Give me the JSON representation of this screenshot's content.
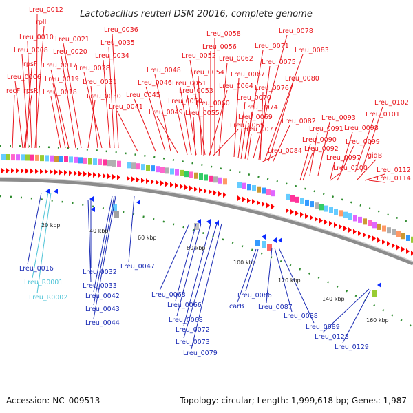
{
  "title": "Lactobacillus reuteri DSM 20016, complete genome",
  "accession": "Accession: NC_009513",
  "summary": "Topology: circular; Length: 1,999,618 bp; Genes: 1,987",
  "colors": {
    "forward_label": "#e8141b",
    "reverse_label": "#1a2bb4",
    "rna_label": "#4ec3d6",
    "backbone": "#9a9a9a",
    "forward_arrow": "#ff0000",
    "reverse_arrow": "#0a2aff",
    "tick_mark": "#2e8b2e"
  },
  "forward_labels": [
    "Lreu_0012",
    "rplI",
    "Lreu_0010",
    "Lreu_0008",
    "rpsF",
    "Lreu_0006",
    "recF",
    "rpsR",
    "Lreu_0021",
    "Lreu_0020",
    "Lreu_0017",
    "Lreu_0019",
    "Lreu_0018",
    "Lreu_0036",
    "Lreu_0035",
    "Lreu_0034",
    "Lreu_0028",
    "Lreu_0031",
    "Lreu_0030",
    "Lreu_0048",
    "Lreu_0046",
    "Lreu_0045",
    "Lreu_0041",
    "Lreu_0049",
    "Lreu_0058",
    "Lreu_0056",
    "Lreu_0052",
    "Lreu_0062",
    "Lreu_0054",
    "Lreu_0051",
    "Lreu_0053",
    "Lreu_0050",
    "Lreu_0055",
    "Lreu_0060",
    "Lreu_0064",
    "Lreu_0065",
    "Lreu_0078",
    "Lreu_0071",
    "Lreu_0083",
    "Lreu_0075",
    "Lreu_0067",
    "Lreu_0080",
    "Lreu_0076",
    "Lreu_0070",
    "Lreu_0074",
    "Lreu_0069",
    "Lreu_0077",
    "Lreu_0082",
    "Lreu_0084",
    "Lreu_0102",
    "Lreu_0101",
    "Lreu_0093",
    "Lreu_0091",
    "Lreu_0098",
    "Lreu_0090",
    "Lreu_0099",
    "Lreu_0092",
    "Lreu_0097",
    "gidB",
    "Lreu_0100",
    "Lreu_0112",
    "Lreu_0114"
  ],
  "reverse_labels": [
    "Lreu_0016",
    "Lreu_0032",
    "Lreu_0033",
    "Lreu_0042",
    "Lreu_0043",
    "Lreu_0044",
    "Lreu_0047",
    "Lreu_0063",
    "Lreu_0066",
    "Lreu_0068",
    "Lreu_0072",
    "Lreu_0073",
    "Lreu_0079",
    "Lreu_0086",
    "carB",
    "Lreu_0087",
    "Lreu_0088",
    "Lreu_0089",
    "Lreu_0128",
    "Lreu_0129"
  ],
  "rna_labels": [
    "Lreu_R0001",
    "Lreu_R0002"
  ],
  "scale_ticks": [
    "20 kbp",
    "40 kbp",
    "60 kbp",
    "80 kbp",
    "100 kbp",
    "120 kbp",
    "140 kbp",
    "160 kbp"
  ]
}
